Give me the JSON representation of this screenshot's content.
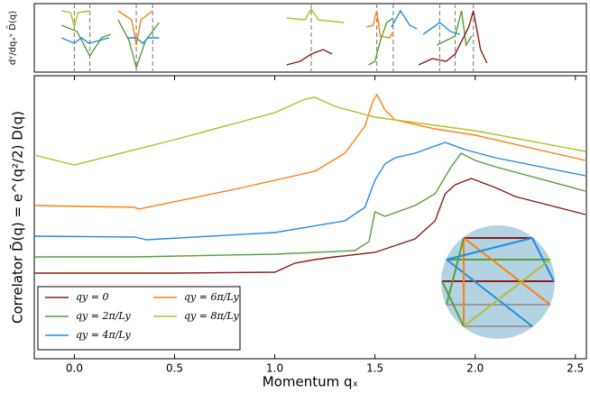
{
  "chart_data": [
    {
      "type": "line",
      "ylabel": "dᵛ/dqₓᵛ D̄(q)",
      "xlim": [
        -0.2,
        2.555
      ],
      "ylim": [
        0,
        76
      ],
      "vlines": [
        0,
        0.077,
        0.309,
        0.391,
        1.182,
        1.509,
        1.591,
        1.823,
        1.9,
        1.991
      ],
      "vline_color": "#888888",
      "series": [
        {
          "color": "#b5bd2a",
          "x": [
            -0.064,
            -0.018,
            0,
            0.018,
            0.077
          ],
          "values": [
            68,
            66,
            50,
            66,
            68
          ]
        },
        {
          "color": "#5a9e3a",
          "x": [
            -0.064,
            0.014,
            0.077,
            0.136,
            0.182
          ],
          "values": [
            52,
            45,
            18,
            38,
            42
          ]
        },
        {
          "color": "#1f8ee0",
          "x": [
            -0.064,
            0,
            0.036,
            0.073,
            0.173
          ],
          "values": [
            38,
            32,
            38,
            32,
            38
          ]
        },
        {
          "color": "#ff7f0e",
          "x": [
            0.218,
            0.286,
            0.309,
            0.332,
            0.391
          ],
          "values": [
            68,
            58,
            30,
            58,
            68
          ]
        },
        {
          "color": "#5a9e3a",
          "x": [
            0.218,
            0.273,
            0.309,
            0.355,
            0.423
          ],
          "values": [
            58,
            35,
            5,
            35,
            55
          ]
        },
        {
          "color": "#1f8ee0",
          "x": [
            0.264,
            0.309,
            0.341,
            0.368,
            0.423
          ],
          "values": [
            38,
            38,
            32,
            38,
            38
          ]
        },
        {
          "color": "#b5bd2a",
          "x": [
            1.059,
            1.15,
            1.182,
            1.218,
            1.345
          ],
          "values": [
            60,
            58,
            70,
            58,
            55
          ]
        },
        {
          "color": "#8b1a1a",
          "x": [
            1.059,
            1.127,
            1.182,
            1.241,
            1.286
          ],
          "values": [
            8,
            12,
            20,
            25,
            20
          ]
        },
        {
          "color": "#ff7f0e",
          "x": [
            1.459,
            1.491,
            1.509,
            1.527,
            1.573,
            1.591
          ],
          "values": [
            50,
            52,
            68,
            40,
            38,
            45
          ]
        },
        {
          "color": "#5a9e3a",
          "x": [
            1.468,
            1.5,
            1.527,
            1.559,
            1.591
          ],
          "values": [
            8,
            12,
            35,
            55,
            60
          ]
        },
        {
          "color": "#1f8ee0",
          "x": [
            1.582,
            1.627,
            1.673,
            1.709
          ],
          "values": [
            50,
            68,
            52,
            48
          ]
        },
        {
          "color": "#1f8ee0",
          "x": [
            1.741,
            1.823,
            1.877,
            1.923
          ],
          "values": [
            42,
            55,
            45,
            42
          ]
        },
        {
          "color": "#5a9e3a",
          "x": [
            1.809,
            1.9,
            1.932,
            1.955,
            1.982
          ],
          "values": [
            30,
            40,
            68,
            30,
            40
          ]
        },
        {
          "color": "#8b1a1a",
          "x": [
            1.718,
            1.786,
            1.855,
            1.9,
            1.968,
            1.991,
            2.027,
            2.059
          ],
          "values": [
            8,
            15,
            12,
            20,
            50,
            68,
            25,
            10
          ]
        }
      ]
    },
    {
      "type": "line",
      "xlabel": "Momentum qₓ",
      "ylabel": "Correlator D̄(q) = e^(q²/2) D(q)",
      "xlim": [
        -0.2,
        2.555
      ],
      "ylim": [
        0,
        314
      ],
      "xticks": [
        {
          "value": 0,
          "label": "0.0"
        },
        0.5,
        {
          "value": 1,
          "label": "1.0"
        },
        1.5,
        {
          "value": 2,
          "label": "2.0"
        },
        2.5
      ],
      "legend": "lower left",
      "series": [
        {
          "name": "qy = 0",
          "color": "#8b1a1a",
          "x": [
            -0.2,
            0,
            0.5,
            1.0,
            1.1,
            1.2,
            1.3,
            1.5,
            1.7,
            1.8,
            1.85,
            1.9,
            1.98,
            2.1,
            2.2,
            2.55
          ],
          "values": [
            95,
            95,
            95,
            96,
            106,
            110,
            113,
            118,
            133,
            153,
            183,
            193,
            200,
            190,
            180,
            160
          ]
        },
        {
          "name": "qy = 2π/Ly",
          "color": "#5a9e3a",
          "x": [
            -0.2,
            0.3,
            1.0,
            1.4,
            1.47,
            1.5,
            1.55,
            1.7,
            1.8,
            1.88,
            1.93,
            2.0,
            2.1,
            2.55
          ],
          "values": [
            113,
            113,
            116,
            120,
            130,
            163,
            158,
            170,
            183,
            213,
            228,
            220,
            213,
            186
          ]
        },
        {
          "name": "qy = 4π/Ly",
          "color": "#1f8ee0",
          "x": [
            -0.2,
            0.3,
            0.36,
            1.0,
            1.35,
            1.45,
            1.5,
            1.55,
            1.6,
            1.7,
            1.85,
            1.95,
            2.1,
            2.55
          ],
          "values": [
            136,
            135,
            132,
            140,
            153,
            168,
            198,
            216,
            223,
            228,
            240,
            232,
            223,
            203
          ]
        },
        {
          "name": "qy = 6π/Ly",
          "color": "#ff7f0e",
          "x": [
            -0.2,
            0.3,
            0.32,
            0.8,
            1.2,
            1.35,
            1.45,
            1.49,
            1.51,
            1.55,
            1.6,
            1.8,
            2.0,
            2.55
          ],
          "values": [
            170,
            168,
            166,
            188,
            208,
            228,
            258,
            286,
            293,
            276,
            265,
            255,
            248,
            220
          ]
        },
        {
          "name": "qy = 8π/Ly",
          "color": "#b5bd2a",
          "x": [
            -0.2,
            0.0,
            0.5,
            1.0,
            1.15,
            1.2,
            1.3,
            1.5,
            2.0,
            2.55
          ],
          "values": [
            226,
            215,
            243,
            273,
            288,
            290,
            280,
            268,
            253,
            230
          ]
        }
      ]
    }
  ]
}
